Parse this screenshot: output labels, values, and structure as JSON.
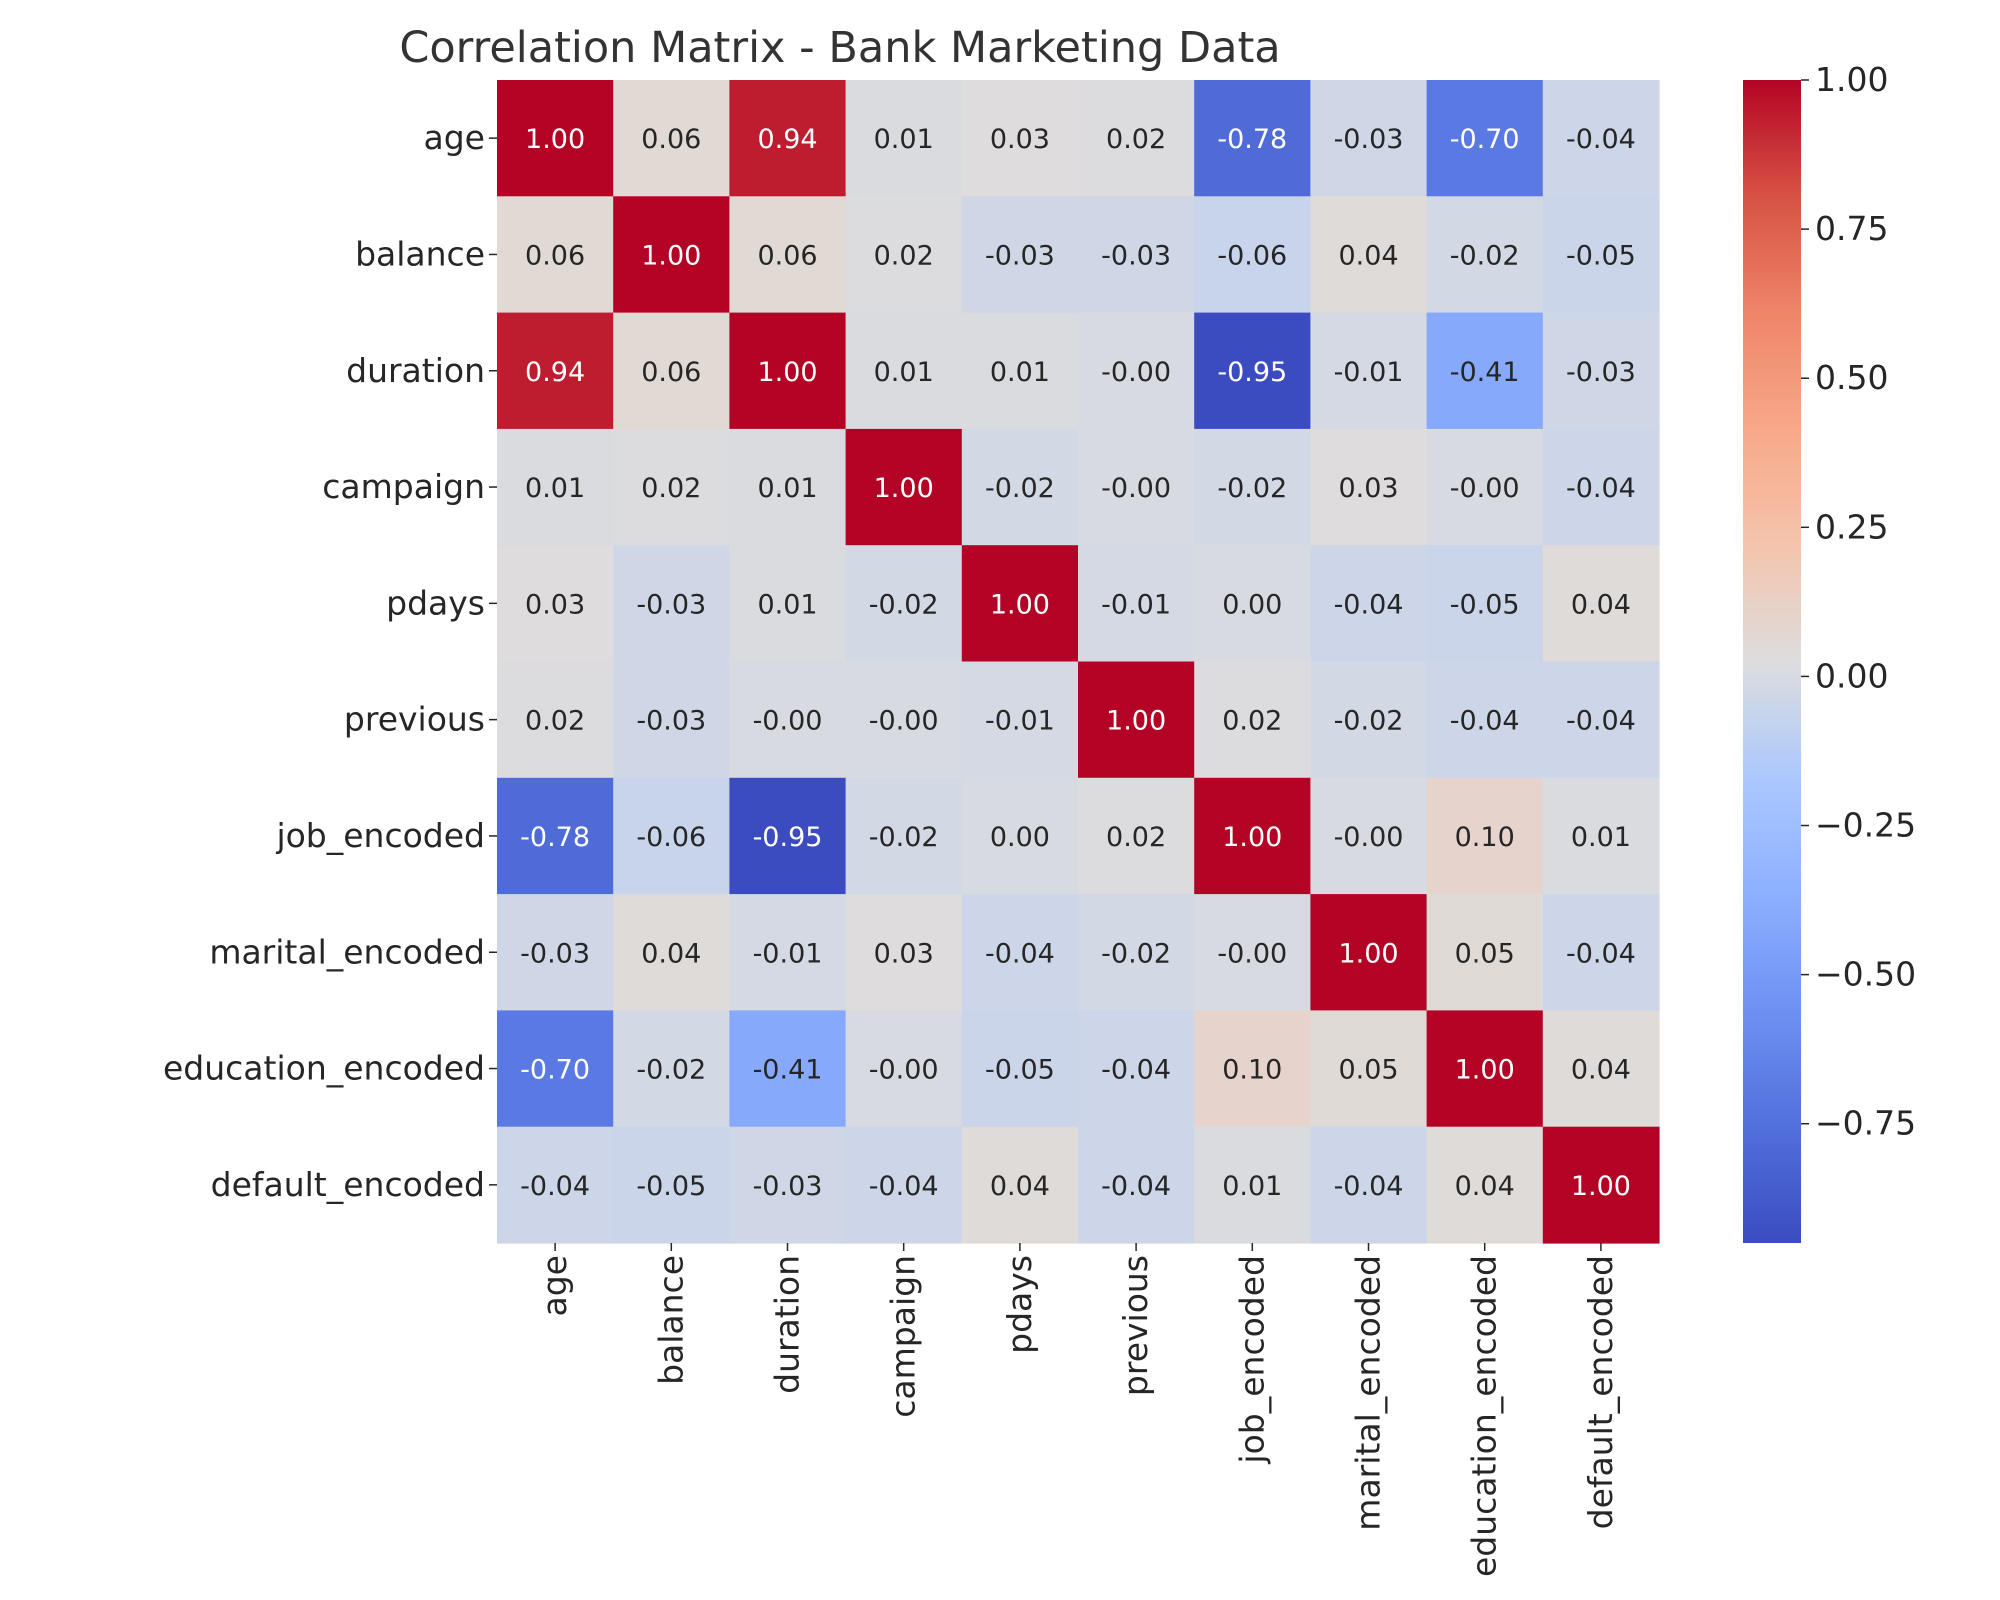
{
  "chart_data": {
    "type": "heatmap",
    "title": "Correlation Matrix - Bank Marketing Data",
    "xlabel": "",
    "ylabel": "",
    "colormap": "coolwarm",
    "vmin": -0.95,
    "vmax": 1.0,
    "row_labels": [
      "age",
      "balance",
      "duration",
      "campaign",
      "pdays",
      "previous",
      "job_encoded",
      "marital_encoded",
      "education_encoded",
      "default_encoded"
    ],
    "col_labels": [
      "age",
      "balance",
      "duration",
      "campaign",
      "pdays",
      "previous",
      "job_encoded",
      "marital_encoded",
      "education_encoded",
      "default_encoded"
    ],
    "values": [
      [
        1.0,
        0.06,
        0.94,
        0.01,
        0.03,
        0.02,
        -0.78,
        -0.03,
        -0.7,
        -0.04
      ],
      [
        0.06,
        1.0,
        0.06,
        0.02,
        -0.03,
        -0.03,
        -0.06,
        0.04,
        -0.02,
        -0.05
      ],
      [
        0.94,
        0.06,
        1.0,
        0.01,
        0.01,
        -0.0,
        -0.95,
        -0.01,
        -0.41,
        -0.03
      ],
      [
        0.01,
        0.02,
        0.01,
        1.0,
        -0.02,
        -0.0,
        -0.02,
        0.03,
        -0.0,
        -0.04
      ],
      [
        0.03,
        -0.03,
        0.01,
        -0.02,
        1.0,
        -0.01,
        0.0,
        -0.04,
        -0.05,
        0.04
      ],
      [
        0.02,
        -0.03,
        -0.0,
        -0.0,
        -0.01,
        1.0,
        0.02,
        -0.02,
        -0.04,
        -0.04
      ],
      [
        -0.78,
        -0.06,
        -0.95,
        -0.02,
        0.0,
        0.02,
        1.0,
        -0.0,
        0.1,
        0.01
      ],
      [
        -0.03,
        0.04,
        -0.01,
        0.03,
        -0.04,
        -0.02,
        -0.0,
        1.0,
        0.05,
        -0.04
      ],
      [
        -0.7,
        -0.02,
        -0.41,
        -0.0,
        -0.05,
        -0.04,
        0.1,
        0.05,
        1.0,
        0.04
      ],
      [
        -0.04,
        -0.05,
        -0.03,
        -0.04,
        0.04,
        -0.04,
        0.01,
        -0.04,
        0.04,
        1.0
      ]
    ],
    "annotations": [
      [
        "1.00",
        "0.06",
        "0.94",
        "0.01",
        "0.03",
        "0.02",
        "-0.78",
        "-0.03",
        "-0.70",
        "-0.04"
      ],
      [
        "0.06",
        "1.00",
        "0.06",
        "0.02",
        "-0.03",
        "-0.03",
        "-0.06",
        "0.04",
        "-0.02",
        "-0.05"
      ],
      [
        "0.94",
        "0.06",
        "1.00",
        "0.01",
        "0.01",
        "-0.00",
        "-0.95",
        "-0.01",
        "-0.41",
        "-0.03"
      ],
      [
        "0.01",
        "0.02",
        "0.01",
        "1.00",
        "-0.02",
        "-0.00",
        "-0.02",
        "0.03",
        "-0.00",
        "-0.04"
      ],
      [
        "0.03",
        "-0.03",
        "0.01",
        "-0.02",
        "1.00",
        "-0.01",
        "0.00",
        "-0.04",
        "-0.05",
        "0.04"
      ],
      [
        "0.02",
        "-0.03",
        "-0.00",
        "-0.00",
        "-0.01",
        "1.00",
        "0.02",
        "-0.02",
        "-0.04",
        "-0.04"
      ],
      [
        "-0.78",
        "-0.06",
        "-0.95",
        "-0.02",
        "0.00",
        "0.02",
        "1.00",
        "-0.00",
        "0.10",
        "0.01"
      ],
      [
        "-0.03",
        "0.04",
        "-0.01",
        "0.03",
        "-0.04",
        "-0.02",
        "-0.00",
        "1.00",
        "0.05",
        "-0.04"
      ],
      [
        "-0.70",
        "-0.02",
        "-0.41",
        "-0.00",
        "-0.05",
        "-0.04",
        "0.10",
        "0.05",
        "1.00",
        "0.04"
      ],
      [
        "-0.04",
        "-0.05",
        "-0.03",
        "-0.04",
        "0.04",
        "-0.04",
        "0.01",
        "-0.04",
        "0.04",
        "1.00"
      ]
    ],
    "colorbar": {
      "ticks": [
        1.0,
        0.75,
        0.5,
        0.25,
        0.0,
        -0.25,
        -0.5,
        -0.75
      ],
      "tick_labels": [
        "1.00",
        "0.75",
        "0.50",
        "0.25",
        "0.00",
        "−0.25",
        "−0.50",
        "−0.75"
      ]
    },
    "grid": false,
    "legend": "colorbar-right"
  }
}
